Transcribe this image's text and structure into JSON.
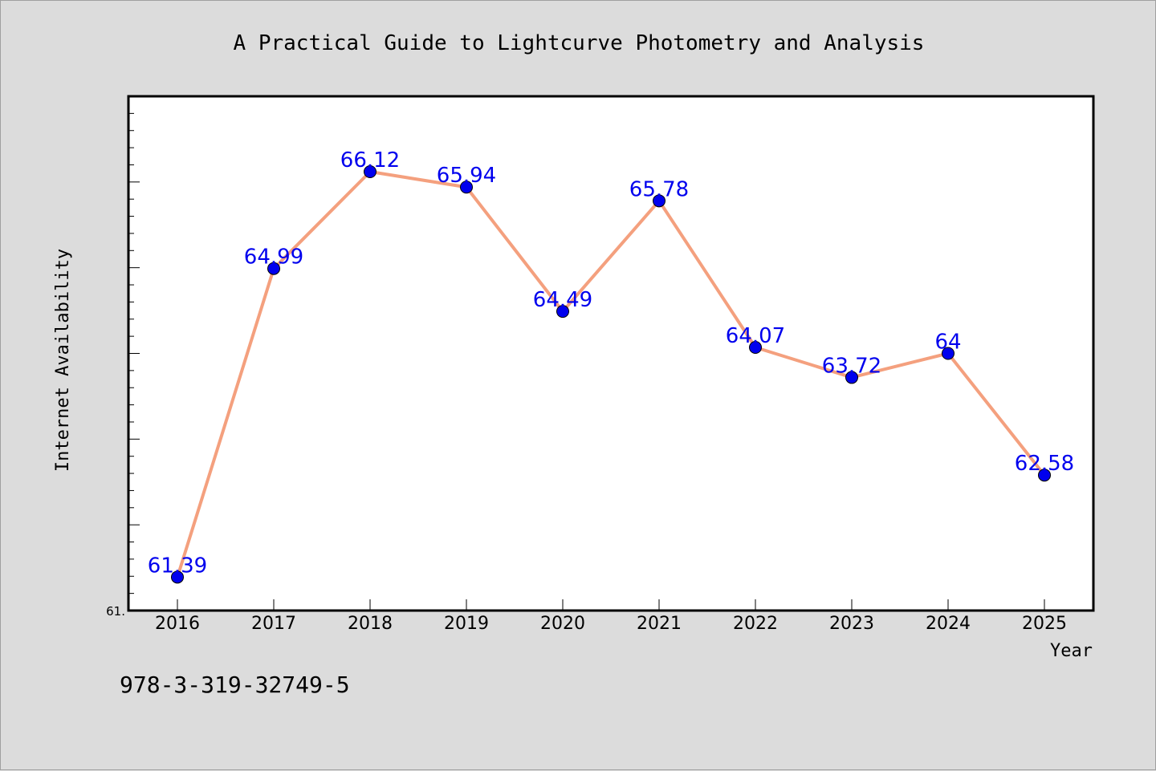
{
  "chart_data": {
    "type": "line",
    "title": "A Practical Guide to Lightcurve Photometry and Analysis",
    "xlabel": "Year",
    "ylabel": "Internet Availability",
    "categories": [
      "2016",
      "2017",
      "2018",
      "2019",
      "2020",
      "2021",
      "2022",
      "2023",
      "2024",
      "2025"
    ],
    "series": [
      {
        "values": [
          61.39,
          64.99,
          66.12,
          65.94,
          64.49,
          65.78,
          64.07,
          63.72,
          64.0,
          62.58
        ],
        "labels": [
          "61.39",
          "64.99",
          "66.12",
          "65.94",
          "64.49",
          "65.78",
          "64.07",
          "63.72",
          "64",
          "62.58"
        ]
      }
    ],
    "ylim": [
      61.0,
      67.0
    ],
    "ytick_label": "61.",
    "grid": false,
    "legend": "none",
    "colors": {
      "line": "#f4a07e",
      "marker": "#0000ee",
      "label": "#0000ee",
      "plot_bg": "#ffffff",
      "page_bg": "#dcdcdc"
    }
  },
  "footer": {
    "isbn": "978-3-319-32749-5"
  }
}
